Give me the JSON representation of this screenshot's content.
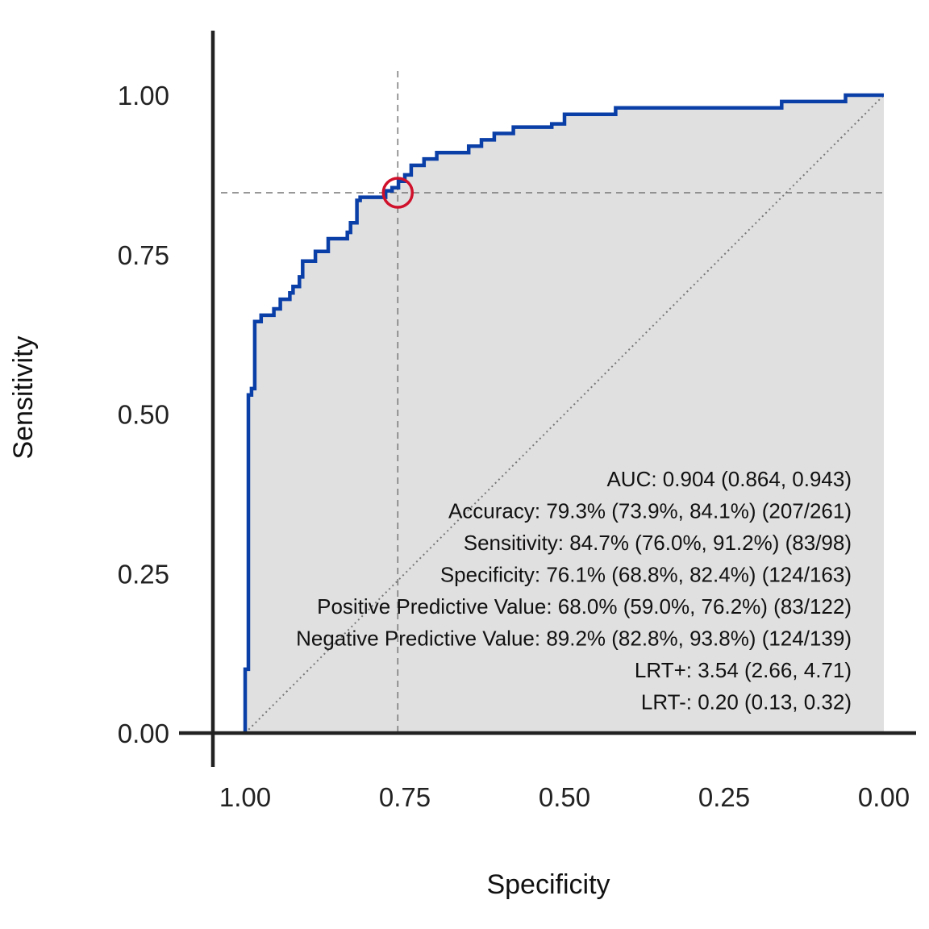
{
  "chart_data": {
    "type": "line",
    "xlabel": "Specificity",
    "ylabel": "Sensitivity",
    "x_reversed": true,
    "xlim": [
      1.0,
      0.0
    ],
    "ylim": [
      0.0,
      1.0
    ],
    "x_ticks": [
      "1.00",
      "0.75",
      "0.50",
      "0.25",
      "0.00"
    ],
    "y_ticks": [
      "0.00",
      "0.25",
      "0.50",
      "0.75",
      "1.00"
    ],
    "grid": false,
    "colors": {
      "roc_line": "#0a3fa8",
      "area_fill": "#e1e0e1",
      "marker": "#d0112b",
      "reference": "#777777",
      "axis": "#222222"
    },
    "optimal_point": {
      "specificity": 0.761,
      "sensitivity": 0.847
    },
    "series": [
      {
        "specificity": [
          1.0,
          1.0,
          0.995,
          0.995,
          0.99,
          0.99,
          0.985,
          0.985,
          0.975,
          0.975,
          0.955,
          0.955,
          0.945,
          0.945,
          0.93,
          0.93,
          0.925,
          0.925,
          0.915,
          0.915,
          0.91,
          0.91,
          0.89,
          0.89,
          0.87,
          0.87,
          0.84,
          0.84,
          0.835,
          0.835,
          0.825,
          0.825,
          0.82,
          0.82,
          0.78,
          0.78,
          0.77,
          0.77,
          0.76,
          0.76,
          0.75,
          0.75,
          0.74,
          0.74,
          0.72,
          0.72,
          0.7,
          0.7,
          0.65,
          0.65,
          0.63,
          0.63,
          0.61,
          0.61,
          0.58,
          0.58,
          0.52,
          0.52,
          0.5,
          0.5,
          0.42,
          0.42,
          0.16,
          0.16,
          0.06,
          0.06,
          0.0
        ],
        "sensitivity": [
          0.0,
          0.1,
          0.1,
          0.53,
          0.53,
          0.54,
          0.54,
          0.645,
          0.645,
          0.655,
          0.655,
          0.665,
          0.665,
          0.68,
          0.68,
          0.69,
          0.69,
          0.7,
          0.7,
          0.715,
          0.715,
          0.74,
          0.74,
          0.755,
          0.755,
          0.775,
          0.775,
          0.785,
          0.785,
          0.8,
          0.8,
          0.835,
          0.835,
          0.84,
          0.84,
          0.85,
          0.85,
          0.855,
          0.855,
          0.865,
          0.865,
          0.875,
          0.875,
          0.89,
          0.89,
          0.9,
          0.9,
          0.91,
          0.91,
          0.92,
          0.92,
          0.93,
          0.93,
          0.94,
          0.94,
          0.95,
          0.95,
          0.955,
          0.955,
          0.97,
          0.97,
          0.98,
          0.98,
          0.99,
          0.99,
          1.0,
          1.0
        ]
      }
    ],
    "annotations": [
      "AUC:  0.904 (0.864, 0.943)",
      "Accuracy:  79.3% (73.9%, 84.1%) (207/261)",
      "Sensitivity:  84.7% (76.0%, 91.2%) (83/98)",
      "Specificity:  76.1% (68.8%, 82.4%) (124/163)",
      "Positive Predictive Value:  68.0% (59.0%, 76.2%) (83/122)",
      "Negative Predictive Value:  89.2% (82.8%, 93.8%) (124/139)",
      "LRT+:  3.54 (2.66, 4.71)",
      "LRT-:  0.20 (0.13, 0.32)"
    ]
  }
}
